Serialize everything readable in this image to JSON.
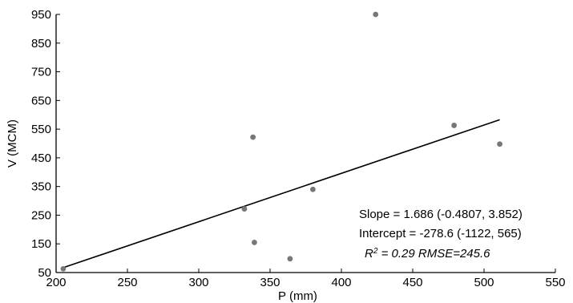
{
  "chart_data": {
    "type": "scatter",
    "title": "",
    "xlabel": "P (mm)",
    "ylabel": "V (MCM)",
    "xlim": [
      200,
      550
    ],
    "ylim": [
      50,
      950
    ],
    "xticks": [
      200,
      250,
      300,
      350,
      400,
      450,
      500,
      550
    ],
    "yticks": [
      50,
      150,
      250,
      350,
      450,
      550,
      650,
      750,
      850,
      950
    ],
    "grid": false,
    "colors": {
      "points": "#777777",
      "line": "#000000",
      "axis": "#000000"
    },
    "series": [
      {
        "points": [
          {
            "x": 205,
            "y": 63
          },
          {
            "x": 332,
            "y": 272
          },
          {
            "x": 338,
            "y": 522
          },
          {
            "x": 339,
            "y": 155
          },
          {
            "x": 364,
            "y": 98
          },
          {
            "x": 380,
            "y": 340
          },
          {
            "x": 424,
            "y": 950
          },
          {
            "x": 479,
            "y": 563
          },
          {
            "x": 511,
            "y": 498
          }
        ]
      }
    ],
    "fit": {
      "slope": 1.686,
      "intercept": -278.6,
      "x_range": [
        205,
        511
      ]
    },
    "annotations": {
      "slope": "Slope =  1.686  (-0.4807, 3.852)",
      "intercept": "Intercept = -278.6  (-1122, 565)",
      "r2_prefix": "R",
      "r2_sup": "2",
      "r2_rest": " = 0.29 RMSE=245.6"
    }
  }
}
